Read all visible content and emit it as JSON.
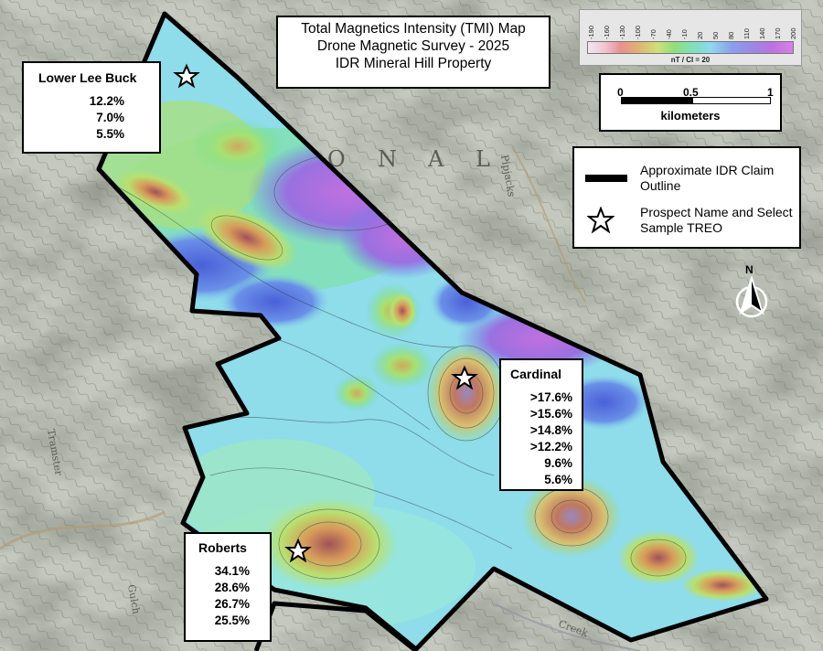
{
  "title": {
    "line1": "Total Magnetics Intensity (TMI) Map",
    "line2": "Drone Magnetic Survey - 2025",
    "line3": "IDR Mineral Hill Property"
  },
  "prospects": [
    {
      "name": "Lower Lee Buck",
      "values": [
        "12.2%",
        "7.0%",
        "5.5%"
      ]
    },
    {
      "name": "Cardinal",
      "values": [
        ">17.6%",
        ">15.6%",
        ">14.8%",
        ">12.2%",
        "9.6%",
        "5.6%"
      ]
    },
    {
      "name": "Roberts",
      "values": [
        "34.1%",
        "28.6%",
        "26.7%",
        "25.5%"
      ]
    }
  ],
  "legend": {
    "claim_label": "Approximate IDR Claim Outline",
    "prospect_label": "Prospect Name and Select Sample TREO"
  },
  "scale_bar": {
    "ticks": [
      "0",
      "0.5",
      "1"
    ],
    "unit": "kilometers"
  },
  "colorbar": {
    "ticks": [
      "-190",
      "-160",
      "-130",
      "-100",
      "-70",
      "-40",
      "-10",
      "20",
      "50",
      "80",
      "110",
      "140",
      "170",
      "200"
    ],
    "label": "nT / CI = 20",
    "colors": [
      "#f2e6f2",
      "#e99090",
      "#e0b070",
      "#cfe07a",
      "#8fe07a",
      "#7ee0c0",
      "#8fd8ee",
      "#8aa0ee",
      "#9a88e6",
      "#d680e8"
    ]
  },
  "north_arrow": {
    "label": "N",
    "icon": "north-arrow-icon"
  },
  "topo_labels": [
    "O",
    "N",
    "A",
    "L",
    "Pipjacks",
    "Tramster",
    "Gulch",
    "Creek"
  ]
}
